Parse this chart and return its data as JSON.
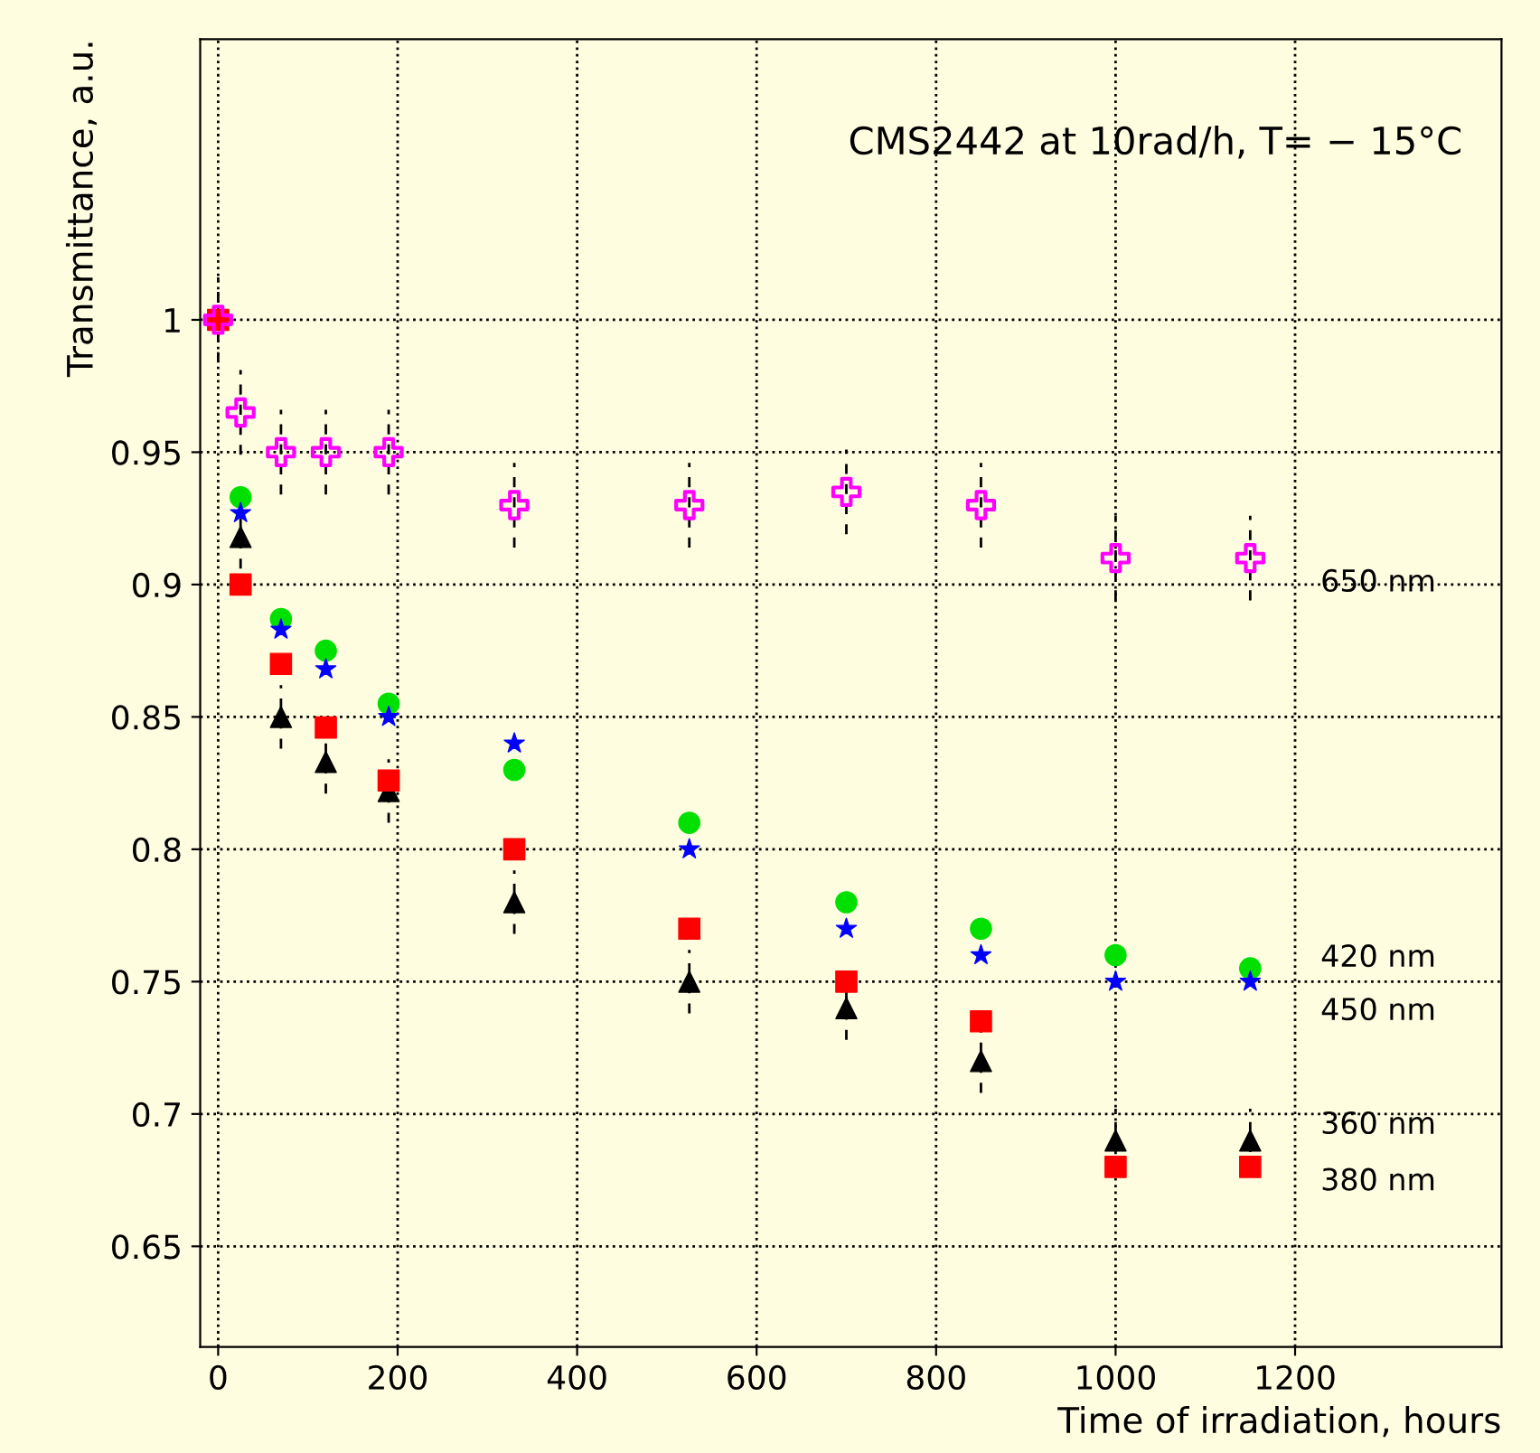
{
  "chart_data": {
    "type": "scatter",
    "xlabel": "Time of irradiation, hours",
    "ylabel": "Transmittance, a.u.",
    "annotations": [
      "CMS2442 at 10rad/h, T= − 15°C"
    ],
    "x": [
      0,
      25,
      70,
      120,
      190,
      330,
      525,
      700,
      850,
      1000,
      1150
    ],
    "series": [
      {
        "name": "650 nm",
        "color": "#ff00ff",
        "marker": "cross",
        "values": [
          1,
          0.965,
          0.95,
          0.95,
          0.95,
          0.93,
          0.93,
          0.935,
          0.93,
          0.91,
          0.91
        ],
        "errors": [
          0.016,
          0.016,
          0.016,
          0.016,
          0.016,
          0.016,
          0.016,
          0.016,
          0.016,
          0.016,
          0.016
        ]
      },
      {
        "name": "420 nm",
        "color": "#00e000",
        "marker": "circle",
        "values": [
          null,
          0.933,
          0.887,
          0.875,
          0.855,
          0.83,
          0.81,
          0.78,
          0.77,
          0.76,
          0.755
        ]
      },
      {
        "name": "450 nm",
        "color": "#0000ff",
        "marker": "star",
        "values": [
          null,
          0.927,
          0.883,
          0.868,
          0.85,
          0.84,
          0.8,
          0.77,
          0.76,
          0.75,
          0.75
        ]
      },
      {
        "name": "360 nm",
        "color": "#000000",
        "marker": "triangle",
        "values": [
          null,
          0.918,
          0.85,
          0.833,
          0.822,
          0.78,
          0.75,
          0.74,
          0.72,
          0.69,
          0.69
        ],
        "errors": [
          null,
          0.012,
          0.012,
          0.012,
          0.012,
          0.012,
          0.012,
          0.012,
          0.012,
          0.012,
          0.012
        ]
      },
      {
        "name": "380 nm",
        "color": "#ff0000",
        "marker": "square",
        "values": [
          1,
          0.9,
          0.87,
          0.846,
          0.826,
          0.8,
          0.77,
          0.75,
          0.735,
          0.68,
          0.68
        ]
      }
    ],
    "xlim": [
      -20,
      1430
    ],
    "ylim": [
      0.612,
      1.106
    ],
    "xticks": [
      0,
      200,
      400,
      600,
      800,
      1000,
      1200
    ],
    "yticks": [
      0.65,
      0.7,
      0.75,
      0.8,
      0.85,
      0.9,
      0.95,
      1
    ],
    "grid": true,
    "legend": false
  }
}
